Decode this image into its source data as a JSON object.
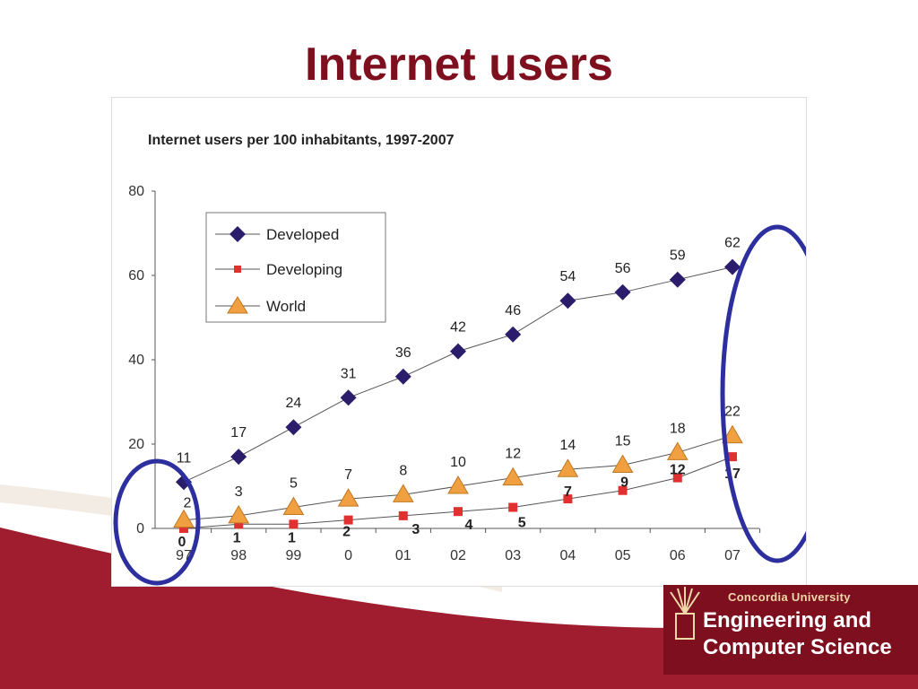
{
  "slide": {
    "title": "Internet users"
  },
  "colors": {
    "title": "#7d0f1e",
    "band": "#a01c2f",
    "developed": "#2b1d6b",
    "developing": "#e03030",
    "world": "#f0a040",
    "highlight": "#2e2f9e"
  },
  "chart_data": {
    "type": "line",
    "title": "Internet users per 100 inhabitants, 1997-2007",
    "xlabel": "",
    "ylabel": "",
    "categories": [
      "97",
      "98",
      "99",
      "0",
      "01",
      "02",
      "03",
      "04",
      "05",
      "06",
      "07"
    ],
    "ylim": [
      0,
      80
    ],
    "yticks": [
      0,
      20,
      40,
      60,
      80
    ],
    "grid": false,
    "legend": "top-left",
    "series": [
      {
        "name": "Developed",
        "marker": "diamond",
        "values": [
          11,
          17,
          24,
          31,
          36,
          42,
          46,
          54,
          56,
          59,
          62
        ],
        "labels": [
          "11",
          "17",
          "24",
          "31",
          "36",
          "42",
          "46",
          "54",
          "56",
          "59",
          "62"
        ]
      },
      {
        "name": "Developing",
        "marker": "square",
        "values": [
          0,
          1,
          1,
          2,
          3,
          4,
          5,
          7,
          9,
          12,
          17
        ],
        "labels": [
          "0",
          "1",
          "1",
          "2",
          "3",
          "4",
          "5",
          "7",
          "9",
          "12",
          "17"
        ]
      },
      {
        "name": "World",
        "marker": "triangle",
        "values": [
          2,
          3,
          5,
          7,
          8,
          10,
          12,
          14,
          15,
          18,
          22
        ],
        "labels": [
          "2",
          "3",
          "5",
          "7",
          "8",
          "10",
          "12",
          "14",
          "15",
          "18",
          "22"
        ]
      }
    ],
    "annotations": [
      {
        "type": "ellipse",
        "category": "97",
        "note": "highlight first year"
      },
      {
        "type": "ellipse",
        "category": "07",
        "note": "highlight last year"
      }
    ]
  },
  "logo": {
    "subtitle": "Concordia University",
    "line1": "Engineering and",
    "line2": "Computer Science"
  }
}
